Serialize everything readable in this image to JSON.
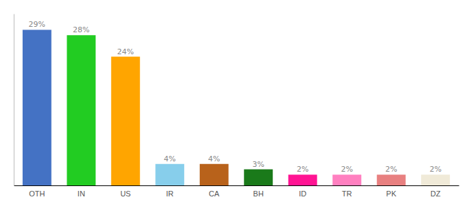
{
  "chart_data": {
    "type": "bar",
    "categories": [
      "OTH",
      "IN",
      "US",
      "IR",
      "CA",
      "BH",
      "ID",
      "TR",
      "PK",
      "DZ"
    ],
    "values": [
      29,
      28,
      24,
      4,
      4,
      3,
      2,
      2,
      2,
      2
    ],
    "value_labels": [
      "29%",
      "28%",
      "24%",
      "4%",
      "4%",
      "3%",
      "2%",
      "2%",
      "2%",
      "2%"
    ],
    "colors": [
      "#4472c4",
      "#22cc22",
      "#ffa500",
      "#87ceeb",
      "#b8621b",
      "#1a7a1a",
      "#ff1493",
      "#ff80c0",
      "#e88080",
      "#f0ead8"
    ],
    "ylim": [
      0,
      32
    ],
    "data_labels": true,
    "tick_labels": "x",
    "grid": false
  }
}
